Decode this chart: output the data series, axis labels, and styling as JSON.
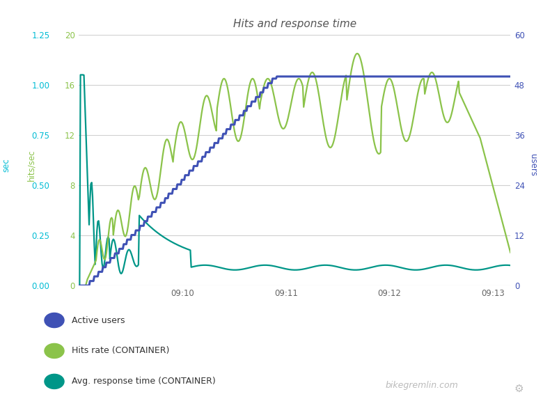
{
  "title": "Hits and response time",
  "title_fontsize": 11,
  "title_style": "italic",
  "background_color": "#ffffff",
  "plot_bg_color": "#ffffff",
  "grid_color": "#d0d0d0",
  "left_axis_label": "sec",
  "left_axis_color": "#00bcd4",
  "left_yticks": [
    0,
    0.25,
    0.5,
    0.75,
    1.0,
    1.25
  ],
  "left_ylim": [
    0,
    1.25
  ],
  "middle_axis_label": "hits/sec",
  "middle_axis_color": "#8bc34a",
  "middle_yticks": [
    0,
    4,
    8,
    12,
    16,
    20
  ],
  "middle_ylim": [
    0,
    20
  ],
  "right_axis_label": "users",
  "right_axis_color": "#3f51b5",
  "right_yticks": [
    0,
    12,
    24,
    36,
    48,
    60
  ],
  "right_ylim": [
    0,
    60
  ],
  "xtick_labels": [
    "09:10",
    "09:11",
    "09:12",
    "09:13"
  ],
  "active_users_color": "#3f51b5",
  "hits_rate_color": "#8bc34a",
  "response_time_color": "#009688",
  "watermark": "bikegremlin.com",
  "watermark_color": "#bbbbbb",
  "legend_labels": [
    "Active users",
    "Hits rate (CONTAINER)",
    "Avg. response time (CONTAINER)"
  ],
  "legend_colors": [
    "#3f51b5",
    "#8bc34a",
    "#009688"
  ]
}
